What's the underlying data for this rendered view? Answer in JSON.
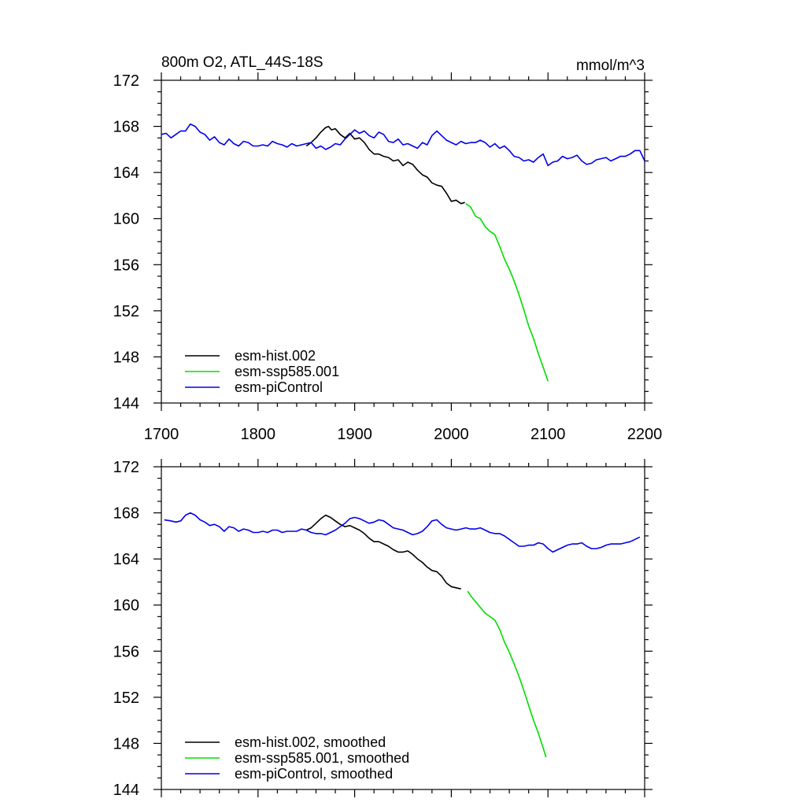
{
  "chart_data": [
    {
      "type": "line",
      "title_left": "800m O2, ATL_44S-18S",
      "title_right": "mmol/m^3",
      "xlim": [
        1700,
        2200
      ],
      "ylim": [
        144,
        172
      ],
      "x_ticks": [
        1700,
        1800,
        1900,
        2000,
        2100,
        2200
      ],
      "x_tick_labels": [
        "1700",
        "1800",
        "1900",
        "2000",
        "2100",
        "2200"
      ],
      "show_x_tick_labels": true,
      "y_ticks": [
        144,
        148,
        152,
        156,
        160,
        164,
        168,
        172
      ],
      "y_tick_labels": [
        "144",
        "148",
        "152",
        "156",
        "160",
        "164",
        "168",
        "172"
      ],
      "grid": false,
      "legend_position": "bottom-left",
      "series": [
        {
          "name": "esm-hist.002",
          "color": "#000000",
          "x": [
            1850,
            1855,
            1860,
            1865,
            1870,
            1873,
            1876,
            1880,
            1885,
            1890,
            1895,
            1900,
            1905,
            1910,
            1915,
            1920,
            1925,
            1930,
            1935,
            1940,
            1945,
            1950,
            1955,
            1960,
            1965,
            1970,
            1975,
            1980,
            1985,
            1990,
            1995,
            2000,
            2005,
            2010,
            2014
          ],
          "y": [
            166.3,
            166.6,
            167.0,
            167.5,
            167.9,
            168.0,
            167.7,
            167.8,
            167.3,
            167.0,
            167.4,
            166.9,
            167.0,
            166.6,
            166.0,
            165.6,
            165.6,
            165.4,
            165.3,
            165.0,
            165.1,
            164.6,
            164.9,
            164.7,
            164.2,
            163.8,
            163.6,
            163.1,
            162.9,
            162.8,
            162.2,
            161.5,
            161.6,
            161.3,
            161.4
          ]
        },
        {
          "name": "esm-ssp585.001",
          "color": "#00dd00",
          "x": [
            2015,
            2020,
            2025,
            2030,
            2035,
            2040,
            2045,
            2050,
            2055,
            2060,
            2065,
            2070,
            2075,
            2080,
            2085,
            2090,
            2095,
            2100
          ],
          "y": [
            161.3,
            161.0,
            160.2,
            160.0,
            159.3,
            158.9,
            158.6,
            157.6,
            156.5,
            155.6,
            154.6,
            153.4,
            152.1,
            150.7,
            149.6,
            148.3,
            147.1,
            145.9
          ]
        },
        {
          "name": "esm-piControl",
          "color": "#0000ee",
          "x": [
            1700,
            1705,
            1710,
            1715,
            1720,
            1725,
            1730,
            1735,
            1740,
            1745,
            1750,
            1755,
            1760,
            1765,
            1770,
            1775,
            1780,
            1785,
            1790,
            1795,
            1800,
            1805,
            1810,
            1815,
            1820,
            1825,
            1830,
            1835,
            1840,
            1845,
            1850,
            1855,
            1860,
            1865,
            1870,
            1875,
            1880,
            1885,
            1890,
            1895,
            1900,
            1905,
            1910,
            1915,
            1920,
            1925,
            1930,
            1935,
            1940,
            1945,
            1950,
            1955,
            1960,
            1965,
            1970,
            1975,
            1980,
            1985,
            1990,
            1995,
            2000,
            2005,
            2010,
            2015,
            2020,
            2025,
            2030,
            2035,
            2040,
            2045,
            2050,
            2055,
            2060,
            2065,
            2070,
            2075,
            2080,
            2085,
            2090,
            2095,
            2100,
            2105,
            2110,
            2115,
            2120,
            2125,
            2130,
            2135,
            2140,
            2145,
            2150,
            2155,
            2160,
            2165,
            2170,
            2175,
            2180,
            2185,
            2190,
            2195,
            2200
          ],
          "y": [
            167.3,
            167.4,
            167.0,
            167.3,
            167.6,
            167.6,
            168.2,
            168.0,
            167.5,
            167.3,
            166.8,
            167.1,
            166.6,
            166.4,
            166.9,
            166.5,
            166.3,
            166.7,
            166.6,
            166.3,
            166.3,
            166.4,
            166.3,
            166.7,
            166.5,
            166.4,
            166.2,
            166.5,
            166.3,
            166.4,
            166.5,
            166.6,
            166.1,
            166.3,
            166.0,
            166.2,
            166.5,
            166.4,
            166.9,
            167.3,
            167.7,
            167.4,
            167.6,
            167.2,
            167.0,
            167.5,
            167.3,
            166.7,
            166.6,
            166.9,
            166.4,
            166.5,
            166.3,
            166.1,
            166.6,
            166.4,
            167.2,
            167.6,
            167.2,
            166.8,
            166.6,
            166.4,
            166.7,
            166.5,
            166.6,
            166.6,
            166.8,
            166.6,
            166.2,
            166.5,
            166.1,
            166.3,
            165.9,
            165.4,
            165.3,
            165.0,
            165.1,
            164.9,
            165.3,
            165.6,
            164.6,
            164.9,
            165.0,
            165.4,
            165.2,
            165.3,
            165.5,
            165.0,
            164.7,
            164.8,
            165.1,
            165.2,
            165.3,
            165.0,
            165.2,
            165.4,
            165.4,
            165.6,
            165.9,
            165.9,
            165.0
          ]
        }
      ]
    },
    {
      "type": "line",
      "xlim": [
        1700,
        2200
      ],
      "ylim": [
        144,
        172
      ],
      "x_ticks": [
        1700,
        1800,
        1900,
        2000,
        2100,
        2200
      ],
      "show_x_tick_labels": false,
      "y_ticks": [
        144,
        148,
        152,
        156,
        160,
        164,
        168,
        172
      ],
      "y_tick_labels": [
        "144",
        "148",
        "152",
        "156",
        "160",
        "164",
        "168",
        "172"
      ],
      "grid": false,
      "legend_position": "bottom-left",
      "series": [
        {
          "name": "esm-hist.002, smoothed",
          "color": "#000000",
          "x": [
            1850,
            1855,
            1860,
            1865,
            1870,
            1875,
            1880,
            1885,
            1890,
            1895,
            1900,
            1905,
            1910,
            1915,
            1920,
            1925,
            1930,
            1935,
            1940,
            1945,
            1950,
            1955,
            1960,
            1965,
            1970,
            1975,
            1980,
            1985,
            1990,
            1995,
            2000,
            2005,
            2010
          ],
          "y": [
            166.5,
            166.7,
            167.1,
            167.5,
            167.8,
            167.6,
            167.3,
            167.0,
            166.8,
            166.9,
            166.7,
            166.5,
            166.2,
            165.8,
            165.5,
            165.5,
            165.3,
            165.1,
            164.8,
            164.6,
            164.6,
            164.7,
            164.4,
            164.0,
            163.7,
            163.3,
            163.0,
            162.9,
            162.5,
            161.9,
            161.6,
            161.5,
            161.4
          ]
        },
        {
          "name": "esm-ssp585.001, smoothed",
          "color": "#00dd00",
          "x": [
            2017,
            2020,
            2025,
            2030,
            2035,
            2040,
            2045,
            2050,
            2055,
            2060,
            2065,
            2070,
            2075,
            2080,
            2085,
            2090,
            2095,
            2098
          ],
          "y": [
            161.2,
            160.8,
            160.3,
            159.8,
            159.3,
            159.0,
            158.7,
            157.9,
            156.8,
            155.9,
            154.9,
            153.8,
            152.6,
            151.3,
            150.0,
            148.9,
            147.6,
            146.8
          ]
        },
        {
          "name": "esm-piControl, smoothed",
          "color": "#0000ee",
          "x": [
            1703,
            1710,
            1715,
            1720,
            1725,
            1730,
            1735,
            1740,
            1745,
            1750,
            1755,
            1760,
            1765,
            1770,
            1775,
            1780,
            1785,
            1790,
            1795,
            1800,
            1805,
            1810,
            1815,
            1820,
            1825,
            1830,
            1835,
            1840,
            1845,
            1850,
            1855,
            1860,
            1865,
            1870,
            1875,
            1880,
            1885,
            1890,
            1895,
            1900,
            1905,
            1910,
            1915,
            1920,
            1925,
            1930,
            1935,
            1940,
            1945,
            1950,
            1955,
            1960,
            1965,
            1970,
            1975,
            1980,
            1985,
            1990,
            1995,
            2000,
            2005,
            2010,
            2015,
            2020,
            2025,
            2030,
            2035,
            2040,
            2045,
            2050,
            2055,
            2060,
            2065,
            2070,
            2075,
            2080,
            2085,
            2090,
            2095,
            2100,
            2105,
            2110,
            2115,
            2120,
            2125,
            2130,
            2135,
            2140,
            2145,
            2150,
            2155,
            2160,
            2165,
            2170,
            2175,
            2180,
            2185,
            2190,
            2195
          ],
          "y": [
            167.4,
            167.3,
            167.2,
            167.3,
            167.8,
            168.0,
            167.8,
            167.4,
            167.2,
            166.9,
            167.0,
            166.8,
            166.4,
            166.8,
            166.7,
            166.4,
            166.6,
            166.5,
            166.3,
            166.3,
            166.4,
            166.3,
            166.5,
            166.5,
            166.3,
            166.4,
            166.4,
            166.4,
            166.6,
            166.5,
            166.3,
            166.2,
            166.2,
            166.1,
            166.3,
            166.5,
            166.8,
            167.1,
            167.5,
            167.6,
            167.5,
            167.3,
            167.1,
            167.2,
            167.4,
            167.3,
            167.0,
            166.7,
            166.6,
            166.5,
            166.3,
            166.1,
            166.2,
            166.4,
            166.8,
            167.3,
            167.4,
            167.0,
            166.7,
            166.6,
            166.5,
            166.6,
            166.7,
            166.6,
            166.6,
            166.7,
            166.5,
            166.3,
            166.2,
            166.2,
            166.0,
            165.7,
            165.4,
            165.1,
            165.1,
            165.2,
            165.2,
            165.4,
            165.3,
            164.9,
            164.6,
            164.8,
            165.0,
            165.2,
            165.3,
            165.3,
            165.4,
            165.1,
            164.9,
            164.9,
            165.0,
            165.2,
            165.3,
            165.3,
            165.3,
            165.4,
            165.5,
            165.7,
            165.9
          ]
        }
      ]
    }
  ]
}
